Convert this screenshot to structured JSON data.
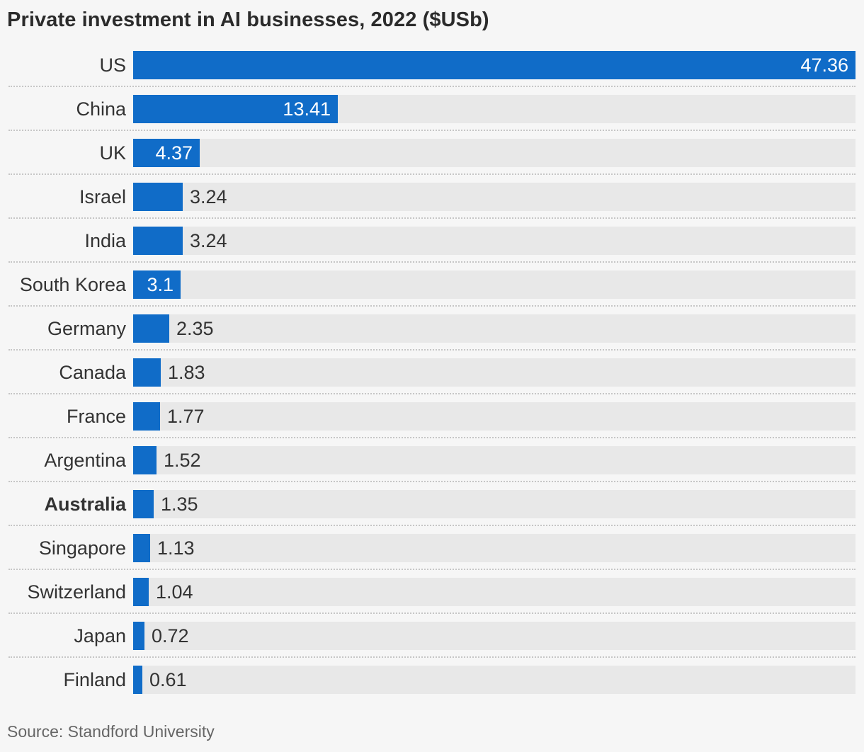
{
  "title": "Private investment in AI businesses, 2022 ($USb)",
  "source": "Source: Standford University",
  "colors": {
    "bar": "#106cc8",
    "track": "#e8e8e8",
    "background": "#f6f6f6"
  },
  "chart_data": {
    "type": "bar",
    "orientation": "horizontal",
    "title": "Private investment in AI businesses, 2022 ($USb)",
    "categories": [
      "US",
      "China",
      "UK",
      "Israel",
      "India",
      "South Korea",
      "Germany",
      "Canada",
      "France",
      "Argentina",
      "Australia",
      "Singapore",
      "Switzerland",
      "Japan",
      "Finland"
    ],
    "values": [
      47.36,
      13.41,
      4.37,
      3.24,
      3.24,
      3.1,
      2.35,
      1.83,
      1.77,
      1.52,
      1.35,
      1.13,
      1.04,
      0.72,
      0.61
    ],
    "value_labels": [
      "47.36",
      "13.41",
      "4.37",
      "3.24",
      "3.24",
      "3.1",
      "2.35",
      "1.83",
      "1.77",
      "1.52",
      "1.35",
      "1.13",
      "1.04",
      "0.72",
      "0.61"
    ],
    "highlighted_category": "Australia",
    "xlim": [
      0,
      47.36
    ],
    "grid": false,
    "legend": "none"
  }
}
